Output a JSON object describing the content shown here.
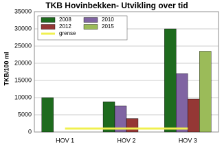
{
  "chart_data": {
    "type": "bar",
    "title": "TKB Hovinbekken- Utvikling over tid",
    "y_label": "TKB/100 ml",
    "categories": [
      "HOV 1",
      "HOV 2",
      "HOV 3"
    ],
    "series": [
      {
        "name": "2008",
        "color": "#1e6b1e",
        "values": [
          10000,
          8800,
          30000
        ]
      },
      {
        "name": "2010",
        "color": "#8064a2",
        "values": [
          null,
          7600,
          17000
        ]
      },
      {
        "name": "2012",
        "color": "#953735",
        "values": [
          null,
          3900,
          9600
        ]
      },
      {
        "name": "2015",
        "color": "#9bbb59",
        "values": [
          null,
          null,
          23500
        ]
      },
      {
        "name": "grense",
        "type": "line",
        "color": "#f0f050",
        "values": [
          1000,
          1000,
          1000
        ]
      }
    ],
    "ylim": [
      0,
      35000
    ],
    "yticks": [
      0,
      5000,
      10000,
      15000,
      20000,
      25000,
      30000,
      35000
    ],
    "grid": true,
    "legend": "top-left"
  }
}
